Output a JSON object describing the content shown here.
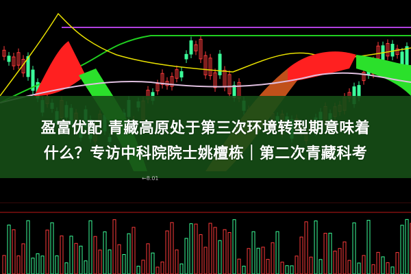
{
  "headline": {
    "line1": "盈富优配 青藏高原处于第三次环境转型期意味着",
    "line2": "什么？专访中科院院士姚檀栋｜第二次青藏科考"
  },
  "chart": {
    "price_marker": "←8.01",
    "colors": {
      "up": "#ff3b3b",
      "down": "#3bff9a",
      "band": "#164e16",
      "yellow": "#e8e000",
      "purple": "#b040e0",
      "green_line": "#20d020"
    }
  }
}
